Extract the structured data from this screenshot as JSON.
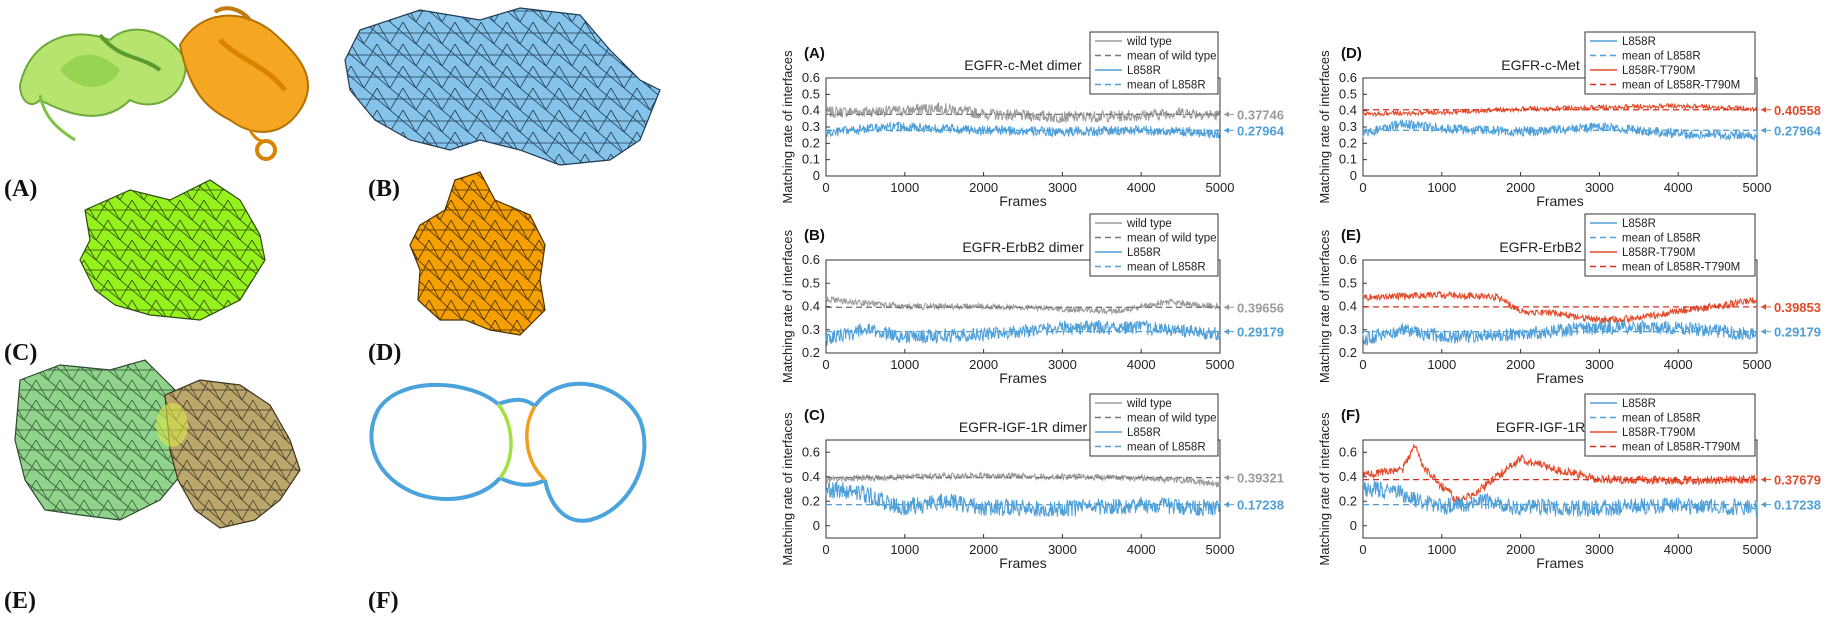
{
  "left_panel": {
    "labels": [
      "(A)",
      "(B)",
      "(C)",
      "(D)",
      "(E)",
      "(F)"
    ],
    "colors": {
      "light_green": "#b7e46f",
      "green": "#7fc241",
      "orange": "#f5a623",
      "blue": "#86c3ea",
      "lime": "#95f21d",
      "khaki": "#bba66c",
      "outline_blue": "#4aa3dc"
    }
  },
  "chart_data": [
    {
      "type": "line",
      "panel": "(A)",
      "title": "EGFR-c-Met dimer",
      "xlabel": "Frames",
      "ylabel": "Matching rate of interfaces",
      "xlim": [
        0,
        5000
      ],
      "ylim": [
        0,
        0.6
      ],
      "xticks": [
        0,
        1000,
        2000,
        3000,
        4000,
        5000
      ],
      "yticks": [
        0,
        0.1,
        0.2,
        0.3,
        0.4,
        0.5,
        0.6
      ],
      "legend": [
        "wild type",
        "mean of wild type",
        "L858R",
        "mean of L858R"
      ],
      "legend_placement": "top-right",
      "series": [
        {
          "name": "wild type",
          "mean": 0.37746,
          "amp": 0.035,
          "color": "#9b9b9b",
          "mean_color": "#777777",
          "shape": [
            [
              0,
              0.39
            ],
            [
              1000,
              0.4
            ],
            [
              1400,
              0.42
            ],
            [
              2000,
              0.38
            ],
            [
              3000,
              0.36
            ],
            [
              4000,
              0.37
            ],
            [
              4500,
              0.39
            ],
            [
              5000,
              0.37
            ]
          ]
        },
        {
          "name": "L858R",
          "mean": 0.27964,
          "amp": 0.03,
          "color": "#4f9fd8",
          "mean_color": "#4f9fd8",
          "shape": [
            [
              0,
              0.26
            ],
            [
              500,
              0.29
            ],
            [
              1000,
              0.3
            ],
            [
              2000,
              0.28
            ],
            [
              3000,
              0.27
            ],
            [
              4000,
              0.28
            ],
            [
              5000,
              0.26
            ]
          ]
        }
      ],
      "annotations": [
        "0.37746",
        "0.27964"
      ]
    },
    {
      "type": "line",
      "panel": "(B)",
      "title": "EGFR-ErbB2 dimer",
      "xlabel": "Frames",
      "ylabel": "Matching rate of interfaces",
      "xlim": [
        0,
        5000
      ],
      "ylim": [
        0.2,
        0.6
      ],
      "xticks": [
        0,
        1000,
        2000,
        3000,
        4000,
        5000
      ],
      "yticks": [
        0.2,
        0.3,
        0.4,
        0.5,
        0.6
      ],
      "legend": [
        "wild type",
        "mean of wild type",
        "L858R",
        "mean of L858R"
      ],
      "legend_placement": "top-right",
      "series": [
        {
          "name": "wild type",
          "mean": 0.39656,
          "amp": 0.013,
          "color": "#9b9b9b",
          "mean_color": "#777777",
          "shape": [
            [
              0,
              0.43
            ],
            [
              300,
              0.42
            ],
            [
              1000,
              0.4
            ],
            [
              2000,
              0.4
            ],
            [
              3000,
              0.39
            ],
            [
              3700,
              0.38
            ],
            [
              4300,
              0.42
            ],
            [
              5000,
              0.4
            ]
          ]
        },
        {
          "name": "L858R",
          "mean": 0.29179,
          "amp": 0.03,
          "color": "#4f9fd8",
          "mean_color": "#4f9fd8",
          "shape": [
            [
              0,
              0.26
            ],
            [
              500,
              0.3
            ],
            [
              1000,
              0.27
            ],
            [
              2000,
              0.28
            ],
            [
              3000,
              0.31
            ],
            [
              4000,
              0.31
            ],
            [
              5000,
              0.28
            ]
          ]
        }
      ],
      "annotations": [
        "0.39656",
        "0.29179"
      ]
    },
    {
      "type": "line",
      "panel": "(C)",
      "title": "EGFR-IGF-1R dimer",
      "xlabel": "Frames",
      "ylabel": "Matching rate of interfaces",
      "xlim": [
        0,
        5000
      ],
      "ylim": [
        -0.1,
        0.7
      ],
      "xticks": [
        0,
        1000,
        2000,
        3000,
        4000,
        5000
      ],
      "yticks": [
        0,
        0.2,
        0.4,
        0.6
      ],
      "legend": [
        "wild type",
        "mean of wild type",
        "L858R",
        "mean of L858R"
      ],
      "legend_placement": "top-right",
      "series": [
        {
          "name": "wild type",
          "mean": 0.39321,
          "amp": 0.025,
          "color": "#9b9b9b",
          "mean_color": "#777777",
          "shape": [
            [
              0,
              0.38
            ],
            [
              1000,
              0.4
            ],
            [
              2000,
              0.41
            ],
            [
              3000,
              0.4
            ],
            [
              4000,
              0.39
            ],
            [
              4500,
              0.37
            ],
            [
              5000,
              0.34
            ]
          ]
        },
        {
          "name": "L858R",
          "mean": 0.17238,
          "amp": 0.07,
          "color": "#4f9fd8",
          "mean_color": "#4f9fd8",
          "shape": [
            [
              0,
              0.3
            ],
            [
              400,
              0.28
            ],
            [
              800,
              0.18
            ],
            [
              1000,
              0.15
            ],
            [
              1500,
              0.2
            ],
            [
              2000,
              0.15
            ],
            [
              3000,
              0.14
            ],
            [
              4000,
              0.17
            ],
            [
              4700,
              0.15
            ],
            [
              5000,
              0.14
            ]
          ]
        }
      ],
      "annotations": [
        "0.39321",
        "0.17238"
      ]
    },
    {
      "type": "line",
      "panel": "(D)",
      "title": "EGFR-c-Met dimer",
      "xlabel": "Frames",
      "ylabel": "Matching rate of interfaces",
      "xlim": [
        0,
        5000
      ],
      "ylim": [
        0,
        0.6
      ],
      "xticks": [
        0,
        1000,
        2000,
        3000,
        4000,
        5000
      ],
      "yticks": [
        0,
        0.1,
        0.2,
        0.3,
        0.4,
        0.5,
        0.6
      ],
      "legend": [
        "L858R",
        "mean of L858R",
        "L858R-T790M",
        "mean of L858R-T790M"
      ],
      "legend_placement": "top-right",
      "series": [
        {
          "name": "L858R-T790M",
          "mean": 0.40558,
          "amp": 0.015,
          "color": "#e34a2a",
          "mean_color": "#d62f1c",
          "shape": [
            [
              0,
              0.38
            ],
            [
              1000,
              0.39
            ],
            [
              2000,
              0.41
            ],
            [
              3000,
              0.42
            ],
            [
              4000,
              0.43
            ],
            [
              5000,
              0.41
            ]
          ]
        },
        {
          "name": "L858R",
          "mean": 0.27964,
          "amp": 0.03,
          "color": "#4f9fd8",
          "mean_color": "#4f9fd8",
          "shape": [
            [
              0,
              0.26
            ],
            [
              500,
              0.32
            ],
            [
              1000,
              0.29
            ],
            [
              2000,
              0.27
            ],
            [
              3000,
              0.3
            ],
            [
              4000,
              0.26
            ],
            [
              5000,
              0.25
            ]
          ]
        }
      ],
      "annotations": [
        "0.40558",
        "0.27964"
      ]
    },
    {
      "type": "line",
      "panel": "(E)",
      "title": "EGFR-ErbB2 dimer",
      "xlabel": "Frames",
      "ylabel": "Matching rate of interfaces",
      "xlim": [
        0,
        5000
      ],
      "ylim": [
        0.2,
        0.6
      ],
      "xticks": [
        0,
        1000,
        2000,
        3000,
        4000,
        5000
      ],
      "yticks": [
        0.2,
        0.3,
        0.4,
        0.5,
        0.6
      ],
      "legend": [
        "L858R",
        "mean of L858R",
        "L858R-T790M",
        "mean of L858R-T790M"
      ],
      "legend_placement": "top-right",
      "series": [
        {
          "name": "L858R-T790M",
          "mean": 0.39853,
          "amp": 0.015,
          "color": "#e34a2a",
          "mean_color": "#d62f1c",
          "shape": [
            [
              0,
              0.44
            ],
            [
              1000,
              0.45
            ],
            [
              1700,
              0.44
            ],
            [
              2000,
              0.38
            ],
            [
              2500,
              0.37
            ],
            [
              3000,
              0.34
            ],
            [
              3500,
              0.35
            ],
            [
              4000,
              0.38
            ],
            [
              4500,
              0.4
            ],
            [
              5000,
              0.43
            ]
          ]
        },
        {
          "name": "L858R",
          "mean": 0.29179,
          "amp": 0.03,
          "color": "#4f9fd8",
          "mean_color": "#4f9fd8",
          "shape": [
            [
              0,
              0.26
            ],
            [
              500,
              0.3
            ],
            [
              1000,
              0.27
            ],
            [
              2000,
              0.28
            ],
            [
              3000,
              0.31
            ],
            [
              4000,
              0.31
            ],
            [
              5000,
              0.28
            ]
          ]
        }
      ],
      "annotations": [
        "0.39853",
        "0.29179"
      ]
    },
    {
      "type": "line",
      "panel": "(F)",
      "title": "EGFR-IGF-1R dimer",
      "xlabel": "Frames",
      "ylabel": "Matching rate of interfaces",
      "xlim": [
        0,
        5000
      ],
      "ylim": [
        -0.1,
        0.7
      ],
      "xticks": [
        0,
        1000,
        2000,
        3000,
        4000,
        5000
      ],
      "yticks": [
        0,
        0.2,
        0.4,
        0.6
      ],
      "legend": [
        "L858R",
        "mean of L858R",
        "L858R-T790M",
        "mean of L858R-T790M"
      ],
      "legend_placement": "top-right",
      "series": [
        {
          "name": "L858R-T790M",
          "mean": 0.37679,
          "amp": 0.035,
          "color": "#e34a2a",
          "mean_color": "#d62f1c",
          "shape": [
            [
              0,
              0.42
            ],
            [
              500,
              0.45
            ],
            [
              650,
              0.65
            ],
            [
              800,
              0.45
            ],
            [
              1200,
              0.2
            ],
            [
              1500,
              0.3
            ],
            [
              2000,
              0.55
            ],
            [
              2500,
              0.45
            ],
            [
              3000,
              0.38
            ],
            [
              4000,
              0.37
            ],
            [
              5000,
              0.38
            ]
          ]
        },
        {
          "name": "L858R",
          "mean": 0.17238,
          "amp": 0.07,
          "color": "#4f9fd8",
          "mean_color": "#4f9fd8",
          "shape": [
            [
              0,
              0.3
            ],
            [
              400,
              0.28
            ],
            [
              800,
              0.18
            ],
            [
              1000,
              0.15
            ],
            [
              1500,
              0.2
            ],
            [
              2000,
              0.15
            ],
            [
              3000,
              0.14
            ],
            [
              4000,
              0.17
            ],
            [
              4700,
              0.15
            ],
            [
              5000,
              0.14
            ]
          ]
        }
      ],
      "annotations": [
        "0.37679",
        "0.17238"
      ]
    }
  ]
}
